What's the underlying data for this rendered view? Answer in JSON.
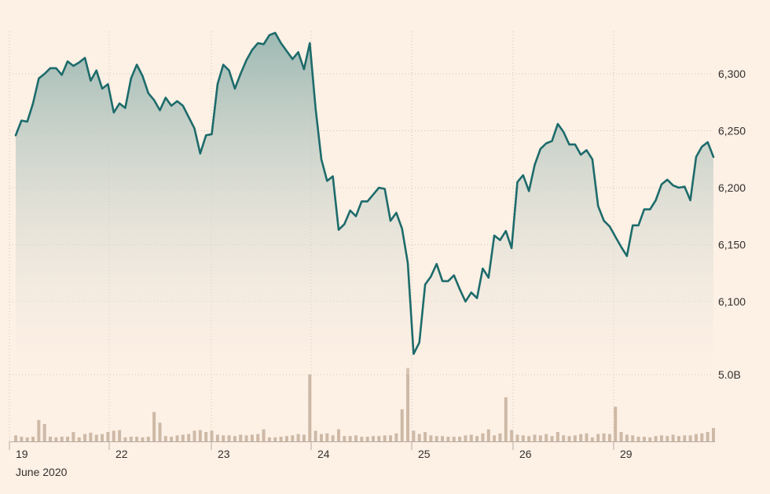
{
  "chart_data": {
    "type": "line",
    "title": "",
    "xlabel": "June 2020",
    "ylabel": "",
    "ylim": [
      6050,
      6340
    ],
    "y_ticks": [
      6100,
      6150,
      6200,
      6250,
      6300
    ],
    "y_tick_labels": [
      "6,100",
      "6,150",
      "6,200",
      "6,250",
      "6,300"
    ],
    "x_ticks": [
      "19",
      "22",
      "23",
      "24",
      "25",
      "26",
      "29"
    ],
    "x_sublabel": "June 2020",
    "grid": true,
    "volume_axis_label": "5.0B",
    "volume_max": 5.0,
    "colors": {
      "line": "#1d6b6b",
      "fill_top": "#9db9b3",
      "volume": "#cdb9a6",
      "background": "#fdf0e5"
    },
    "series": [
      {
        "values": [
          6246,
          6259,
          6258,
          6274,
          6296,
          6300,
          6305,
          6305,
          6299,
          6311,
          6307,
          6310,
          6314,
          6294,
          6303,
          6287,
          6291,
          6266,
          6274,
          6270,
          6296,
          6308,
          6298,
          6283,
          6277,
          6268,
          6279,
          6272,
          6276,
          6272,
          6262,
          6252,
          6230,
          6246,
          6247,
          6291,
          6308,
          6303,
          6287,
          6300,
          6312,
          6321,
          6327,
          6326,
          6334,
          6336,
          6327,
          6320,
          6313,
          6319,
          6304,
          6327,
          6270,
          6225,
          6206,
          6210,
          6163,
          6168,
          6180,
          6175,
          6188,
          6188,
          6194,
          6200,
          6199,
          6171,
          6178,
          6164,
          6134,
          6054,
          6064,
          6115,
          6122,
          6133,
          6118,
          6118,
          6123,
          6111,
          6100,
          6108,
          6103,
          6129,
          6121,
          6158,
          6154,
          6162,
          6147,
          6205,
          6211,
          6197,
          6220,
          6234,
          6239,
          6241,
          6256,
          6249,
          6238,
          6238,
          6229,
          6233,
          6225,
          6184,
          6171,
          6166,
          6157,
          6148,
          6140,
          6167,
          6167,
          6181,
          6181,
          6189,
          6203,
          6207,
          6202,
          6200,
          6201,
          6189,
          6227,
          6236,
          6240,
          6227
        ]
      }
    ],
    "volume": [
      0.45,
      0.35,
      0.3,
      0.35,
      1.6,
      1.3,
      0.35,
      0.3,
      0.35,
      0.35,
      0.7,
      0.3,
      0.55,
      0.65,
      0.5,
      0.55,
      0.7,
      0.8,
      0.85,
      0.3,
      0.35,
      0.35,
      0.3,
      0.35,
      2.2,
      1.4,
      0.4,
      0.35,
      0.45,
      0.5,
      0.55,
      0.8,
      0.85,
      0.7,
      0.8,
      0.5,
      0.45,
      0.45,
      0.4,
      0.5,
      0.45,
      0.5,
      0.55,
      0.9,
      0.3,
      0.3,
      0.35,
      0.4,
      0.45,
      0.55,
      0.5,
      5.0,
      0.8,
      0.55,
      0.6,
      0.45,
      0.9,
      0.4,
      0.4,
      0.45,
      0.35,
      0.35,
      0.4,
      0.4,
      0.45,
      0.45,
      0.6,
      2.4,
      5.5,
      0.8,
      0.55,
      0.7,
      0.45,
      0.4,
      0.4,
      0.35,
      0.35,
      0.35,
      0.45,
      0.5,
      0.4,
      0.6,
      0.9,
      0.45,
      0.6,
      3.3,
      0.85,
      0.5,
      0.45,
      0.4,
      0.5,
      0.45,
      0.55,
      0.4,
      0.7,
      0.45,
      0.4,
      0.45,
      0.55,
      0.6,
      0.3,
      0.55,
      0.6,
      0.55,
      2.6,
      0.7,
      0.5,
      0.45,
      0.35,
      0.35,
      0.3,
      0.4,
      0.45,
      0.4,
      0.5,
      0.4,
      0.45,
      0.45,
      0.55,
      0.6,
      0.7,
      1.0
    ]
  }
}
